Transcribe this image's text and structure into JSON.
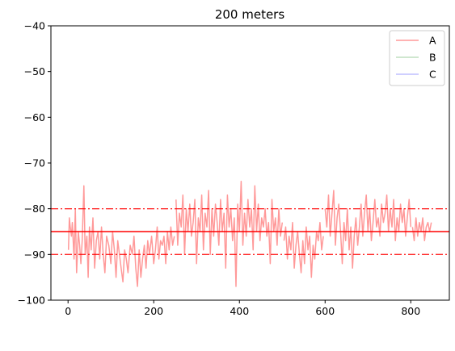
{
  "chart_data": {
    "type": "line",
    "title": "200 meters",
    "xlabel": "",
    "ylabel": "",
    "xlim": [
      -40,
      890
    ],
    "ylim": [
      -100,
      -40
    ],
    "xticks": [
      0,
      200,
      400,
      600,
      800
    ],
    "xtick_labels": [
      "0",
      "200",
      "400",
      "600",
      "800"
    ],
    "yticks": [
      -100,
      -90,
      -80,
      -70,
      -60,
      -50,
      -40
    ],
    "ytick_labels": [
      "−100",
      "−90",
      "−80",
      "−70",
      "−60",
      "−50",
      "−40"
    ],
    "grid": false,
    "legend_position": "top-right",
    "series": [
      {
        "name": "A",
        "color": "#ff0000",
        "alpha": 0.4,
        "x_step": 5,
        "x_start": 0,
        "values": [
          -87,
          -82,
          -85,
          -91,
          -84,
          -88,
          -79,
          -93,
          -87,
          -84,
          -90,
          -86,
          -92,
          -88,
          -85,
          -91,
          -87,
          -89,
          -86,
          -92,
          -88,
          -85,
          -90,
          -87,
          -91,
          -93,
          -89,
          -86,
          -91,
          -88,
          -92,
          -95,
          -89,
          -91,
          -87,
          -93,
          -90,
          -94,
          -92,
          -89,
          -95,
          -91,
          -93,
          -89,
          -92,
          -96,
          -90,
          -93,
          -88,
          -86,
          -84,
          -88,
          -82,
          -86,
          -80,
          -85,
          -83,
          -87,
          -81,
          -84,
          -88,
          -79,
          -85,
          -82,
          -86,
          -80,
          -84,
          -78,
          -83,
          -87,
          -81,
          -85,
          -79,
          -86,
          -83,
          -88,
          -80,
          -84,
          -77,
          -85,
          -82,
          -87,
          -81,
          -84,
          -79,
          -86,
          -82,
          -76,
          -88,
          -83,
          -80,
          -85,
          -78,
          -87,
          -82,
          -84,
          -79,
          -86,
          -81,
          -85,
          -88,
          -83,
          -79,
          -86,
          -82,
          -89,
          -84,
          -87,
          -91,
          -85,
          -83,
          -88,
          -84,
          -90,
          -86,
          -89,
          -85,
          -92,
          -87,
          -89,
          -84,
          -88,
          -91,
          -86,
          -89,
          -92,
          -87,
          -85,
          -90,
          -88,
          -86,
          -83,
          -89,
          -85,
          -82,
          -87,
          -84,
          -80,
          -86,
          -82,
          -85,
          -79,
          -83,
          -87,
          -81,
          -84,
          -86,
          -82,
          -79,
          -85,
          -83,
          -88,
          -81,
          -84,
          -86,
          -83,
          -87,
          -89,
          -85,
          -88,
          -84,
          -86,
          -83,
          -85
        ],
        "segments": [
          {
            "x": [
              1,
              3,
              5,
              8,
              10,
              14,
              17,
              20,
              24,
              27,
              30,
              33,
              37,
              40,
              44,
              47,
              50,
              54,
              58,
              62,
              66,
              70,
              74,
              78,
              82,
              86,
              90,
              95,
              100,
              104,
              108,
              112,
              116,
              120,
              124,
              128,
              132,
              136,
              140,
              145,
              150,
              154,
              158,
              162,
              166,
              170,
              174,
              178,
              182,
              186,
              190,
              195,
              200,
              204,
              208,
              212,
              216,
              220,
              224,
              228,
              232,
              236,
              240,
              244,
              248
            ],
            "y": [
              -89,
              -82,
              -84,
              -86,
              -83,
              -91,
              -80,
              -94,
              -85,
              -88,
              -92,
              -87,
              -75,
              -90,
              -86,
              -95,
              -84,
              -89,
              -82,
              -93,
              -87,
              -85,
              -91,
              -84,
              -90,
              -94,
              -86,
              -88,
              -92,
              -85,
              -89,
              -95,
              -87,
              -90,
              -93,
              -96,
              -89,
              -91,
              -94,
              -88,
              -90,
              -86,
              -93,
              -97,
              -89,
              -95,
              -91,
              -88,
              -93,
              -87,
              -90,
              -86,
              -92,
              -89,
              -84,
              -91,
              -87,
              -88,
              -86,
              -92,
              -85,
              -89,
              -84,
              -88,
              -86
            ]
          },
          {
            "x": [
              252,
              256,
              260,
              264,
              268,
              272,
              276,
              280,
              284,
              288,
              292,
              296,
              300,
              304,
              308,
              312,
              316,
              320,
              324,
              328,
              332,
              336,
              340,
              344,
              348,
              352,
              356,
              360,
              364,
              368,
              372,
              376,
              380,
              384,
              388,
              392,
              396,
              400,
              404,
              408,
              412,
              416,
              420,
              424,
              428,
              432,
              436,
              440,
              444,
              448,
              452,
              456,
              460,
              464,
              468,
              472,
              476,
              480,
              484,
              488,
              492,
              496,
              500
            ],
            "y": [
              -78,
              -88,
              -81,
              -84,
              -77,
              -90,
              -80,
              -85,
              -79,
              -86,
              -83,
              -78,
              -92,
              -82,
              -85,
              -77,
              -89,
              -81,
              -84,
              -76,
              -90,
              -80,
              -86,
              -79,
              -83,
              -88,
              -78,
              -85,
              -81,
              -93,
              -77,
              -84,
              -80,
              -87,
              -82,
              -97,
              -79,
              -85,
              -74,
              -88,
              -81,
              -86,
              -78,
              -84,
              -80,
              -89,
              -75,
              -85,
              -79,
              -87,
              -82,
              -84,
              -80,
              -86,
              -83,
              -92,
              -78,
              -85,
              -82,
              -88,
              -80,
              -86,
              -83
            ]
          },
          {
            "x": [
              504,
              508,
              512,
              516,
              520,
              524,
              528,
              532,
              536,
              540,
              544,
              548,
              552,
              556,
              560,
              564,
              568,
              572,
              576,
              580,
              584,
              588,
              592,
              596
            ],
            "y": [
              -87,
              -84,
              -91,
              -86,
              -89,
              -83,
              -93,
              -88,
              -85,
              -90,
              -94,
              -87,
              -92,
              -84,
              -89,
              -86,
              -95,
              -88,
              -91,
              -85,
              -87,
              -83,
              -89,
              -86
            ]
          },
          {
            "x": [
              600,
              604,
              608,
              612,
              616,
              620,
              624,
              628,
              632,
              636,
              640,
              644,
              648,
              652,
              656,
              660,
              664,
              668,
              672,
              676,
              680,
              684,
              688,
              692,
              696,
              700,
              704,
              708,
              712,
              716,
              720,
              724,
              728,
              732,
              736,
              740,
              744,
              748,
              752,
              756,
              760,
              764,
              768,
              772,
              776,
              780,
              784,
              788,
              792,
              796,
              800
            ],
            "y": [
              -80,
              -84,
              -77,
              -86,
              -81,
              -76,
              -88,
              -82,
              -79,
              -85,
              -92,
              -83,
              -87,
              -80,
              -89,
              -84,
              -93,
              -86,
              -82,
              -88,
              -84,
              -79,
              -86,
              -81,
              -77,
              -85,
              -80,
              -87,
              -83,
              -78,
              -84,
              -82,
              -86,
              -79,
              -83,
              -81,
              -77,
              -85,
              -80,
              -84,
              -78,
              -87,
              -82,
              -85,
              -79,
              -83,
              -80,
              -86,
              -82,
              -78,
              -84
            ]
          },
          {
            "x": [
              804,
              808,
              812,
              816,
              820,
              824,
              828,
              832,
              836,
              840,
              844,
              848
            ],
            "y": [
              -84,
              -87,
              -82,
              -86,
              -83,
              -85,
              -82,
              -87,
              -84,
              -83,
              -85,
              -83
            ]
          }
        ]
      },
      {
        "name": "B",
        "color": "#008000",
        "alpha": 0.25
      },
      {
        "name": "C",
        "color": "#0000ff",
        "alpha": 0.25
      }
    ],
    "reference_lines": [
      {
        "y": -85,
        "style": "solid",
        "color": "#ff0000"
      },
      {
        "y": -80,
        "style": "dashdot",
        "color": "#ff0000"
      },
      {
        "y": -90,
        "style": "dashdot",
        "color": "#ff0000"
      }
    ]
  }
}
